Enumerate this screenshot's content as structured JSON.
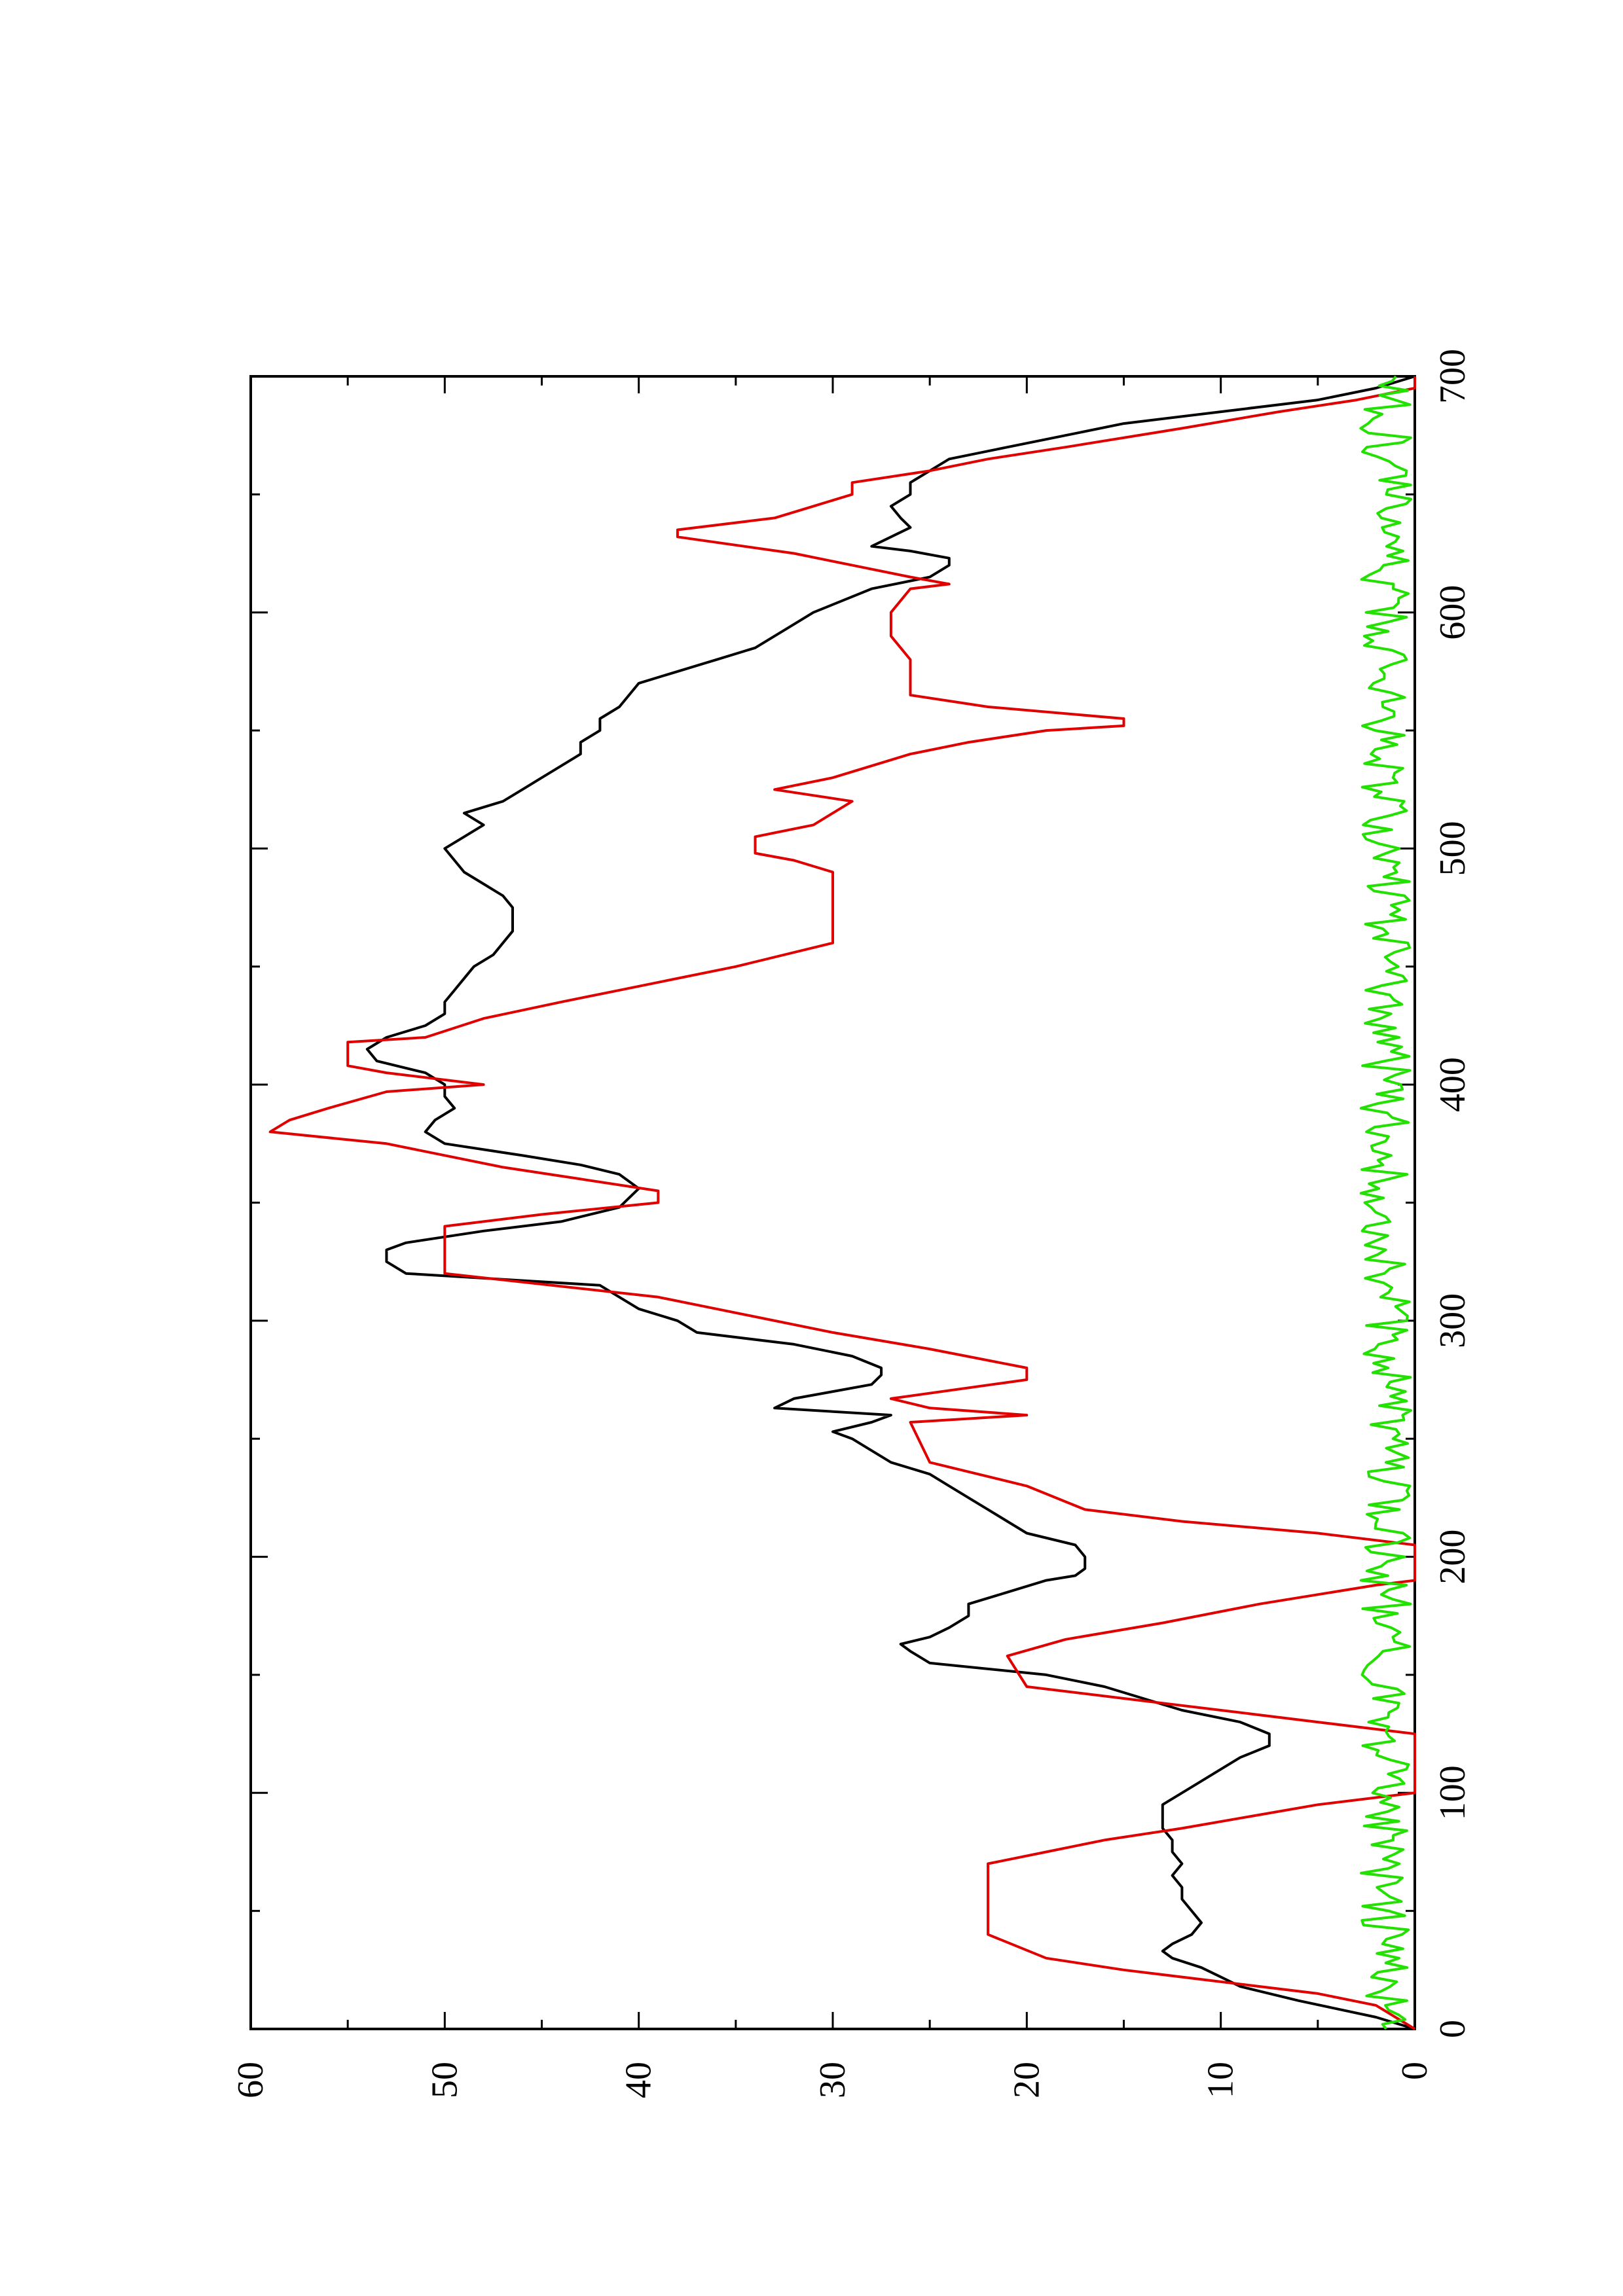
{
  "chart_data": {
    "type": "line",
    "orientation": "rotated-90-ccw",
    "title": "",
    "xlabel": "",
    "ylabel": "",
    "xlim": [
      0,
      700
    ],
    "ylim": [
      0,
      60
    ],
    "x_ticks": [
      0,
      100,
      200,
      300,
      400,
      500,
      600,
      700
    ],
    "y_ticks": [
      0,
      10,
      20,
      30,
      40,
      50,
      60
    ],
    "x_ticks_minor": [
      50,
      150,
      250,
      350,
      450,
      550,
      650
    ],
    "y_ticks_minor": [
      5,
      15,
      25,
      35,
      45,
      55
    ],
    "x_tick_labels": [
      "0",
      "100",
      "200",
      "300",
      "400",
      "500",
      "600",
      "700"
    ],
    "y_tick_labels": [
      "0",
      "10",
      "20",
      "30",
      "40",
      "50",
      "60"
    ],
    "grid": false,
    "legend": "none",
    "colors": {
      "axis": "#000000",
      "series1": "#000000",
      "series2": "#e00000",
      "series3": "#22e000"
    },
    "series": [
      {
        "color": "#000000",
        "points": [
          [
            0,
            0
          ],
          [
            5,
            2
          ],
          [
            12,
            6
          ],
          [
            18,
            9
          ],
          [
            22,
            10
          ],
          [
            26,
            11
          ],
          [
            30,
            12.5
          ],
          [
            33,
            13
          ],
          [
            36,
            12.5
          ],
          [
            40,
            11.5
          ],
          [
            45,
            11
          ],
          [
            50,
            11.5
          ],
          [
            55,
            12
          ],
          [
            60,
            12
          ],
          [
            65,
            12.5
          ],
          [
            70,
            12
          ],
          [
            75,
            12.5
          ],
          [
            80,
            12.5
          ],
          [
            85,
            13
          ],
          [
            90,
            13
          ],
          [
            95,
            13
          ],
          [
            100,
            12
          ],
          [
            105,
            11
          ],
          [
            110,
            10
          ],
          [
            115,
            9
          ],
          [
            120,
            7.5
          ],
          [
            125,
            7.5
          ],
          [
            130,
            9
          ],
          [
            135,
            12
          ],
          [
            140,
            14
          ],
          [
            145,
            16
          ],
          [
            150,
            19
          ],
          [
            155,
            25
          ],
          [
            160,
            26
          ],
          [
            163,
            26.5
          ],
          [
            166,
            25
          ],
          [
            170,
            24
          ],
          [
            175,
            23
          ],
          [
            180,
            23
          ],
          [
            185,
            21
          ],
          [
            190,
            19
          ],
          [
            192,
            17.5
          ],
          [
            195,
            17
          ],
          [
            200,
            17
          ],
          [
            205,
            17.5
          ],
          [
            210,
            20
          ],
          [
            215,
            21
          ],
          [
            220,
            22
          ],
          [
            225,
            23
          ],
          [
            230,
            24
          ],
          [
            235,
            25
          ],
          [
            240,
            27
          ],
          [
            245,
            28
          ],
          [
            250,
            29
          ],
          [
            253,
            30
          ],
          [
            257,
            28
          ],
          [
            260,
            27
          ],
          [
            263,
            33
          ],
          [
            267,
            32
          ],
          [
            270,
            30
          ],
          [
            273,
            28
          ],
          [
            277,
            27.5
          ],
          [
            280,
            27.5
          ],
          [
            285,
            29
          ],
          [
            290,
            32
          ],
          [
            295,
            37
          ],
          [
            300,
            38
          ],
          [
            305,
            40
          ],
          [
            310,
            41
          ],
          [
            315,
            42
          ],
          [
            320,
            52
          ],
          [
            325,
            53
          ],
          [
            330,
            53
          ],
          [
            333,
            52
          ],
          [
            338,
            48
          ],
          [
            342,
            44
          ],
          [
            348,
            41
          ],
          [
            352,
            40.5
          ],
          [
            356,
            40
          ],
          [
            362,
            41
          ],
          [
            366,
            43
          ],
          [
            370,
            46
          ],
          [
            375,
            50
          ],
          [
            380,
            51
          ],
          [
            385,
            50.5
          ],
          [
            390,
            49.5
          ],
          [
            395,
            50
          ],
          [
            400,
            50
          ],
          [
            405,
            51
          ],
          [
            410,
            53.5
          ],
          [
            415,
            54
          ],
          [
            420,
            53
          ],
          [
            425,
            51
          ],
          [
            430,
            50
          ],
          [
            435,
            50
          ],
          [
            440,
            49.5
          ],
          [
            445,
            49
          ],
          [
            450,
            48.5
          ],
          [
            455,
            47.5
          ],
          [
            460,
            47
          ],
          [
            465,
            46.5
          ],
          [
            470,
            46.5
          ],
          [
            475,
            46.5
          ],
          [
            480,
            47
          ],
          [
            485,
            48
          ],
          [
            490,
            49
          ],
          [
            495,
            49.5
          ],
          [
            500,
            50
          ],
          [
            505,
            49
          ],
          [
            510,
            48
          ],
          [
            515,
            49
          ],
          [
            520,
            47
          ],
          [
            525,
            46
          ],
          [
            530,
            45
          ],
          [
            535,
            44
          ],
          [
            540,
            43
          ],
          [
            545,
            43
          ],
          [
            550,
            42
          ],
          [
            555,
            42
          ],
          [
            560,
            41
          ],
          [
            565,
            40.5
          ],
          [
            570,
            40
          ],
          [
            575,
            38
          ],
          [
            580,
            36
          ],
          [
            585,
            34
          ],
          [
            590,
            33
          ],
          [
            595,
            32
          ],
          [
            600,
            31
          ],
          [
            605,
            29.5
          ],
          [
            610,
            28
          ],
          [
            615,
            25
          ],
          [
            620,
            24
          ],
          [
            623,
            24
          ],
          [
            626,
            26
          ],
          [
            628,
            28
          ],
          [
            632,
            27
          ],
          [
            636,
            26
          ],
          [
            640,
            26.5
          ],
          [
            645,
            27
          ],
          [
            650,
            26
          ],
          [
            655,
            26
          ],
          [
            660,
            25
          ],
          [
            665,
            24
          ],
          [
            670,
            21
          ],
          [
            675,
            18
          ],
          [
            680,
            15
          ],
          [
            685,
            10
          ],
          [
            690,
            5
          ],
          [
            695,
            2
          ],
          [
            700,
            0
          ]
        ]
      },
      {
        "color": "#e00000",
        "points": [
          [
            0,
            0
          ],
          [
            10,
            2
          ],
          [
            15,
            5
          ],
          [
            20,
            10
          ],
          [
            25,
            15
          ],
          [
            30,
            19
          ],
          [
            40,
            22
          ],
          [
            70,
            22
          ],
          [
            75,
            19
          ],
          [
            80,
            16
          ],
          [
            85,
            12
          ],
          [
            95,
            5
          ],
          [
            100,
            0
          ],
          [
            125,
            0
          ],
          [
            130,
            5
          ],
          [
            135,
            10
          ],
          [
            140,
            15
          ],
          [
            145,
            20
          ],
          [
            158,
            21
          ],
          [
            165,
            18
          ],
          [
            172,
            13
          ],
          [
            180,
            8
          ],
          [
            188,
            2
          ],
          [
            190,
            0
          ],
          [
            205,
            0
          ],
          [
            210,
            5
          ],
          [
            215,
            12
          ],
          [
            220,
            17
          ],
          [
            230,
            20
          ],
          [
            240,
            25
          ],
          [
            257,
            26
          ],
          [
            260,
            20
          ],
          [
            263,
            25
          ],
          [
            267,
            27
          ],
          [
            275,
            20
          ],
          [
            280,
            20
          ],
          [
            288,
            25
          ],
          [
            295,
            30
          ],
          [
            305,
            36
          ],
          [
            310,
            39
          ],
          [
            320,
            50
          ],
          [
            340,
            50
          ],
          [
            345,
            45
          ],
          [
            350,
            39
          ],
          [
            355,
            39
          ],
          [
            360,
            43
          ],
          [
            365,
            47
          ],
          [
            375,
            53
          ],
          [
            380,
            59
          ],
          [
            385,
            58
          ],
          [
            390,
            56
          ],
          [
            397,
            53
          ],
          [
            400,
            48
          ],
          [
            405,
            53
          ],
          [
            408,
            55
          ],
          [
            418,
            55
          ],
          [
            420,
            51
          ],
          [
            428,
            48
          ],
          [
            435,
            44
          ],
          [
            440,
            41
          ],
          [
            450,
            35
          ],
          [
            460,
            30
          ],
          [
            490,
            30
          ],
          [
            495,
            32
          ],
          [
            498,
            34
          ],
          [
            505,
            34
          ],
          [
            510,
            31
          ],
          [
            515,
            30
          ],
          [
            520,
            29
          ],
          [
            525,
            33
          ],
          [
            530,
            30
          ],
          [
            540,
            26
          ],
          [
            545,
            23
          ],
          [
            550,
            19
          ],
          [
            552,
            15
          ],
          [
            555,
            15
          ],
          [
            560,
            22
          ],
          [
            565,
            26
          ],
          [
            575,
            26
          ],
          [
            580,
            26
          ],
          [
            590,
            27
          ],
          [
            600,
            27
          ],
          [
            610,
            26
          ],
          [
            612,
            24
          ],
          [
            615,
            26
          ],
          [
            620,
            29
          ],
          [
            625,
            32
          ],
          [
            632,
            38
          ],
          [
            635,
            38
          ],
          [
            640,
            33
          ],
          [
            645,
            31
          ],
          [
            650,
            29
          ],
          [
            655,
            29
          ],
          [
            660,
            25
          ],
          [
            665,
            22
          ],
          [
            670,
            18
          ],
          [
            678,
            12
          ],
          [
            685,
            7
          ],
          [
            690,
            3
          ],
          [
            695,
            0
          ],
          [
            700,
            0
          ]
        ]
      },
      {
        "color": "#22e000",
        "points": "noise"
      }
    ]
  }
}
